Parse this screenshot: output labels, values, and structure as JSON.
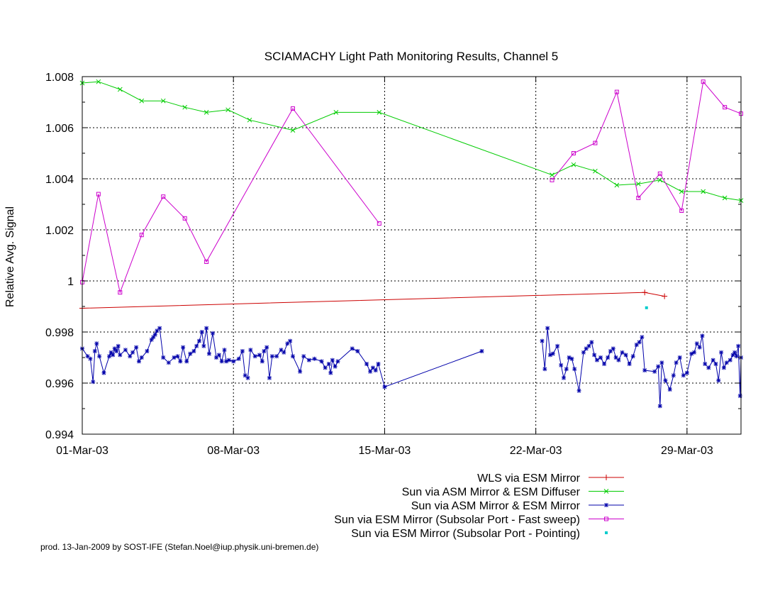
{
  "chart_data": {
    "type": "line",
    "title": "SCIAMACHY Light Path Monitoring Results, Channel 5",
    "xlabel": "",
    "ylabel": "Relative Avg. Signal",
    "x_unit": "date",
    "xlim": [
      "2003-03-01",
      "2003-03-31T12:00"
    ],
    "ylim": [
      0.994,
      1.008
    ],
    "x_ticks": [
      "2003-03-01",
      "2003-03-08",
      "2003-03-15",
      "2003-03-22",
      "2003-03-29"
    ],
    "x_tick_labels": [
      "01-Mar-03",
      "08-Mar-03",
      "15-Mar-03",
      "22-Mar-03",
      "29-Mar-03"
    ],
    "y_ticks": [
      0.994,
      0.996,
      0.998,
      1,
      1.002,
      1.004,
      1.006,
      1.008
    ],
    "y_tick_labels": [
      "0.994",
      "0.996",
      "0.998",
      "1",
      "1.002",
      "1.004",
      "1.006",
      "1.008"
    ],
    "grid": true,
    "legend_position": "below",
    "series": [
      {
        "name": "WLS via ESM Mirror",
        "color": "#cc0000",
        "marker": "plus",
        "connected": true,
        "points": [
          [
            "2003-03-01T00:00",
            0.99893
          ],
          [
            "2003-03-27T01:00",
            0.99955
          ],
          [
            "2003-03-27T23:00",
            0.9994
          ]
        ]
      },
      {
        "name": "Sun via ASM Mirror & ESM Diffuser",
        "color": "#00cc00",
        "marker": "cross",
        "connected": true,
        "points": [
          [
            "2003-03-01T00:00",
            1.00775
          ],
          [
            "2003-03-01T18:00",
            1.0078
          ],
          [
            "2003-03-02T18:00",
            1.0075
          ],
          [
            "2003-03-03T18:00",
            1.00705
          ],
          [
            "2003-03-04T18:00",
            1.00705
          ],
          [
            "2003-03-05T18:00",
            1.0068
          ],
          [
            "2003-03-06T18:00",
            1.0066
          ],
          [
            "2003-03-07T18:00",
            1.0067
          ],
          [
            "2003-03-08T18:00",
            1.0063
          ],
          [
            "2003-03-10T18:00",
            1.0059
          ],
          [
            "2003-03-12T18:00",
            1.0066
          ],
          [
            "2003-03-14T18:00",
            1.0066
          ],
          [
            "2003-03-22T18:00",
            1.00415
          ],
          [
            "2003-03-23T18:00",
            1.00455
          ],
          [
            "2003-03-24T18:00",
            1.0043
          ],
          [
            "2003-03-25T18:00",
            1.00375
          ],
          [
            "2003-03-26T18:00",
            1.0038
          ],
          [
            "2003-03-27T18:00",
            1.00395
          ],
          [
            "2003-03-28T18:00",
            1.0035
          ],
          [
            "2003-03-29T18:00",
            1.0035
          ],
          [
            "2003-03-30T18:00",
            1.00325
          ],
          [
            "2003-03-31T12:00",
            1.00315
          ]
        ]
      },
      {
        "name": "Sun via ASM Mirror & ESM Mirror",
        "color": "#0000aa",
        "marker": "star",
        "connected": true,
        "points": [
          [
            "2003-03-01T00:00",
            0.99735
          ],
          [
            "2003-03-01T06:00",
            0.99705
          ],
          [
            "2003-03-01T09:00",
            0.99695
          ],
          [
            "2003-03-01T12:00",
            0.99605
          ],
          [
            "2003-03-01T14:00",
            0.99725
          ],
          [
            "2003-03-01T16:00",
            0.99755
          ],
          [
            "2003-03-01T19:00",
            0.99705
          ],
          [
            "2003-03-02T00:00",
            0.9964
          ],
          [
            "2003-03-02T06:00",
            0.99705
          ],
          [
            "2003-03-02T08:00",
            0.9972
          ],
          [
            "2003-03-02T10:00",
            0.9971
          ],
          [
            "2003-03-02T12:00",
            0.99735
          ],
          [
            "2003-03-02T14:00",
            0.99725
          ],
          [
            "2003-03-02T16:00",
            0.99745
          ],
          [
            "2003-03-02T18:00",
            0.9971
          ],
          [
            "2003-03-03T00:00",
            0.9973
          ],
          [
            "2003-03-03T05:00",
            0.99705
          ],
          [
            "2003-03-03T08:00",
            0.9972
          ],
          [
            "2003-03-03T12:00",
            0.9974
          ],
          [
            "2003-03-03T15:00",
            0.99685
          ],
          [
            "2003-03-03T18:00",
            0.997
          ],
          [
            "2003-03-04T00:00",
            0.99725
          ],
          [
            "2003-03-04T05:00",
            0.9977
          ],
          [
            "2003-03-04T07:00",
            0.9978
          ],
          [
            "2003-03-04T09:00",
            0.9979
          ],
          [
            "2003-03-04T11:00",
            0.99805
          ],
          [
            "2003-03-04T14:00",
            0.99815
          ],
          [
            "2003-03-04T18:00",
            0.997
          ],
          [
            "2003-03-05T00:00",
            0.9968
          ],
          [
            "2003-03-05T06:00",
            0.997
          ],
          [
            "2003-03-05T10:00",
            0.99705
          ],
          [
            "2003-03-05T13:00",
            0.99685
          ],
          [
            "2003-03-05T16:00",
            0.9974
          ],
          [
            "2003-03-05T20:00",
            0.99685
          ],
          [
            "2003-03-06T00:00",
            0.99715
          ],
          [
            "2003-03-06T04:00",
            0.99725
          ],
          [
            "2003-03-06T07:00",
            0.99745
          ],
          [
            "2003-03-06T10:00",
            0.99765
          ],
          [
            "2003-03-06T13:00",
            0.998
          ],
          [
            "2003-03-06T15:00",
            0.99745
          ],
          [
            "2003-03-06T18:00",
            0.99815
          ],
          [
            "2003-03-06T21:00",
            0.99715
          ],
          [
            "2003-03-07T01:00",
            0.99795
          ],
          [
            "2003-03-07T05:00",
            0.997
          ],
          [
            "2003-03-07T08:00",
            0.9971
          ],
          [
            "2003-03-07T11:00",
            0.99685
          ],
          [
            "2003-03-07T14:00",
            0.9973
          ],
          [
            "2003-03-07T16:00",
            0.99685
          ],
          [
            "2003-03-07T19:00",
            0.9969
          ],
          [
            "2003-03-08T00:00",
            0.99685
          ],
          [
            "2003-03-08T06:00",
            0.99695
          ],
          [
            "2003-03-08T10:00",
            0.99725
          ],
          [
            "2003-03-08T13:00",
            0.9963
          ],
          [
            "2003-03-08T16:00",
            0.9962
          ],
          [
            "2003-03-08T19:00",
            0.9973
          ],
          [
            "2003-03-09T00:00",
            0.99705
          ],
          [
            "2003-03-09T05:00",
            0.9971
          ],
          [
            "2003-03-09T08:00",
            0.99685
          ],
          [
            "2003-03-09T10:00",
            0.99725
          ],
          [
            "2003-03-09T13:00",
            0.9974
          ],
          [
            "2003-03-09T16:00",
            0.9962
          ],
          [
            "2003-03-09T19:00",
            0.99705
          ],
          [
            "2003-03-10T00:00",
            0.99705
          ],
          [
            "2003-03-10T05:00",
            0.9973
          ],
          [
            "2003-03-10T08:00",
            0.9972
          ],
          [
            "2003-03-10T12:00",
            0.99755
          ],
          [
            "2003-03-10T15:00",
            0.99765
          ],
          [
            "2003-03-10T18:00",
            0.99705
          ],
          [
            "2003-03-11T02:00",
            0.99645
          ],
          [
            "2003-03-11T06:00",
            0.99705
          ],
          [
            "2003-03-11T12:00",
            0.9969
          ],
          [
            "2003-03-11T18:00",
            0.99695
          ],
          [
            "2003-03-12T02:00",
            0.99685
          ],
          [
            "2003-03-12T06:00",
            0.9966
          ],
          [
            "2003-03-12T10:00",
            0.99675
          ],
          [
            "2003-03-12T12:00",
            0.9964
          ],
          [
            "2003-03-12T14:00",
            0.9969
          ],
          [
            "2003-03-12T17:00",
            0.99665
          ],
          [
            "2003-03-12T20:00",
            0.99685
          ],
          [
            "2003-03-13T12:00",
            0.99735
          ],
          [
            "2003-03-13T18:00",
            0.99725
          ],
          [
            "2003-03-14T04:00",
            0.99675
          ],
          [
            "2003-03-14T08:00",
            0.99645
          ],
          [
            "2003-03-14T11:00",
            0.9966
          ],
          [
            "2003-03-14T14:00",
            0.9965
          ],
          [
            "2003-03-14T17:00",
            0.99675
          ],
          [
            "2003-03-15T00:00",
            0.99585
          ],
          [
            "2003-03-19T12:00",
            0.99725
          ],
          null,
          [
            "2003-03-22T07:00",
            0.99765
          ],
          [
            "2003-03-22T10:00",
            0.99655
          ],
          [
            "2003-03-22T13:00",
            0.99815
          ],
          [
            "2003-03-22T16:00",
            0.9971
          ],
          [
            "2003-03-22T19:00",
            0.99715
          ],
          [
            "2003-03-23T00:00",
            0.99745
          ],
          [
            "2003-03-23T04:00",
            0.9967
          ],
          [
            "2003-03-23T07:00",
            0.9962
          ],
          [
            "2003-03-23T10:00",
            0.99655
          ],
          [
            "2003-03-23T13:00",
            0.997
          ],
          [
            "2003-03-23T16:00",
            0.99695
          ],
          [
            "2003-03-23T19:00",
            0.99655
          ],
          [
            "2003-03-24T00:00",
            0.9957
          ],
          [
            "2003-03-24T05:00",
            0.9972
          ],
          [
            "2003-03-24T08:00",
            0.99735
          ],
          [
            "2003-03-24T11:00",
            0.99745
          ],
          [
            "2003-03-24T14:00",
            0.9976
          ],
          [
            "2003-03-24T17:00",
            0.9971
          ],
          [
            "2003-03-24T20:00",
            0.9969
          ],
          [
            "2003-03-25T00:00",
            0.997
          ],
          [
            "2003-03-25T04:00",
            0.99675
          ],
          [
            "2003-03-25T08:00",
            0.997
          ],
          [
            "2003-03-25T11:00",
            0.99725
          ],
          [
            "2003-03-25T14:00",
            0.99735
          ],
          [
            "2003-03-25T17:00",
            0.997
          ],
          [
            "2003-03-25T20:00",
            0.9969
          ],
          [
            "2003-03-26T00:00",
            0.9972
          ],
          [
            "2003-03-26T04:00",
            0.9971
          ],
          [
            "2003-03-26T08:00",
            0.99675
          ],
          [
            "2003-03-26T12:00",
            0.99705
          ],
          [
            "2003-03-26T16:00",
            0.9975
          ],
          [
            "2003-03-26T19:00",
            0.9976
          ],
          [
            "2003-03-26T22:00",
            0.9978
          ],
          [
            "2003-03-27T01:00",
            0.9965
          ],
          [
            "2003-03-27T12:00",
            0.99645
          ],
          [
            "2003-03-27T16:00",
            0.99665
          ],
          [
            "2003-03-27T18:00",
            0.9951
          ],
          [
            "2003-03-27T20:00",
            0.9968
          ],
          [
            "2003-03-28T00:00",
            0.9961
          ],
          [
            "2003-03-28T05:00",
            0.99575
          ],
          [
            "2003-03-28T09:00",
            0.9963
          ],
          [
            "2003-03-28T12:00",
            0.9968
          ],
          [
            "2003-03-28T16:00",
            0.997
          ],
          [
            "2003-03-28T20:00",
            0.9963
          ],
          [
            "2003-03-29T00:00",
            0.9964
          ],
          [
            "2003-03-29T05:00",
            0.99715
          ],
          [
            "2003-03-29T08:00",
            0.9972
          ],
          [
            "2003-03-29T11:00",
            0.99755
          ],
          [
            "2003-03-29T14:00",
            0.9974
          ],
          [
            "2003-03-29T17:00",
            0.99785
          ],
          [
            "2003-03-29T20:00",
            0.99675
          ],
          [
            "2003-03-30T00:00",
            0.9966
          ],
          [
            "2003-03-30T05:00",
            0.9969
          ],
          [
            "2003-03-30T08:00",
            0.99675
          ],
          [
            "2003-03-30T11:00",
            0.9961
          ],
          [
            "2003-03-30T14:00",
            0.9972
          ],
          [
            "2003-03-30T17:00",
            0.9966
          ],
          [
            "2003-03-30T20:00",
            0.9968
          ],
          [
            "2003-03-31T00:00",
            0.9969
          ],
          [
            "2003-03-31T03:00",
            0.9971
          ],
          [
            "2003-03-31T05:00",
            0.9972
          ],
          [
            "2003-03-31T07:00",
            0.99705
          ],
          [
            "2003-03-31T09:00",
            0.99745
          ],
          [
            "2003-03-31T11:00",
            0.9955
          ],
          [
            "2003-03-31T12:00",
            0.997
          ]
        ]
      },
      {
        "name": "Sun via ESM Mirror (Subsolar Port - Fast sweep)",
        "color": "#cc00cc",
        "marker": "square",
        "connected": true,
        "points": [
          [
            "2003-03-01T00:00",
            0.99995
          ],
          [
            "2003-03-01T18:00",
            1.0034
          ],
          [
            "2003-03-02T18:00",
            0.99955
          ],
          [
            "2003-03-03T18:00",
            1.0018
          ],
          [
            "2003-03-04T18:00",
            1.0033
          ],
          [
            "2003-03-05T18:00",
            1.00245
          ],
          [
            "2003-03-06T18:00",
            1.00075
          ],
          [
            "2003-03-10T18:00",
            1.00675
          ],
          [
            "2003-03-14T18:00",
            1.00225
          ],
          null,
          [
            "2003-03-22T18:00",
            1.00395
          ],
          [
            "2003-03-23T18:00",
            1.005
          ],
          [
            "2003-03-24T18:00",
            1.0054
          ],
          [
            "2003-03-25T18:00",
            1.0074
          ],
          [
            "2003-03-26T18:00",
            1.00325
          ],
          [
            "2003-03-27T18:00",
            1.0042
          ],
          [
            "2003-03-28T18:00",
            1.00275
          ],
          [
            "2003-03-29T18:00",
            1.0078
          ],
          [
            "2003-03-30T18:00",
            1.0068
          ],
          [
            "2003-03-31T12:00",
            1.00655
          ]
        ]
      },
      {
        "name": "Sun via ESM Mirror (Subsolar Port - Pointing)",
        "color": "#00cccc",
        "marker": "dot",
        "connected": false,
        "points": [
          [
            "2003-03-27T03:00",
            0.99895
          ]
        ]
      }
    ],
    "annotations": [
      "prod. 13-Jan-2009 by SOST-IFE (Stefan.Noel@iup.physik.uni-bremen.de)"
    ]
  }
}
